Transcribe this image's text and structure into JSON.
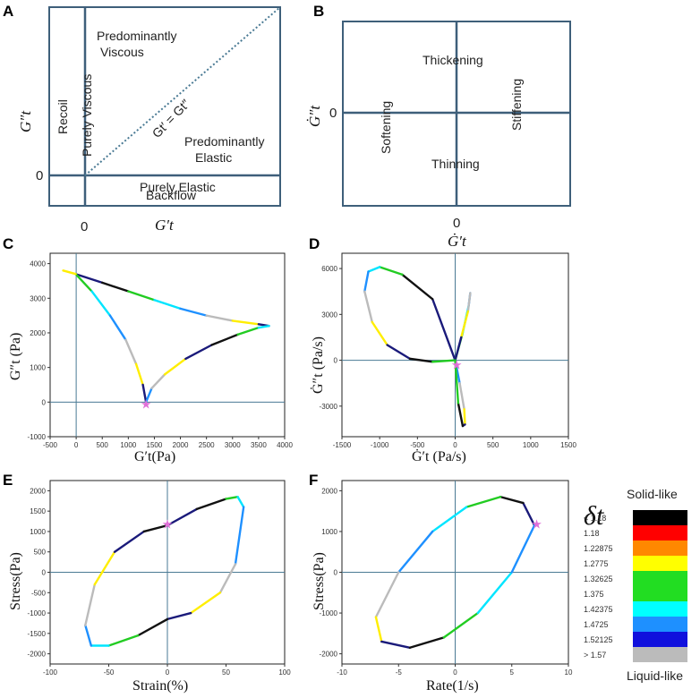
{
  "panels": {
    "A": {
      "label": "A",
      "xlabel": "G′t",
      "ylabel": "G″t",
      "x_zero": "0",
      "y_zero": "0",
      "regions": {
        "predominantly_viscous": [
          "Predominantly",
          "Viscous"
        ],
        "recoil": "Recoil",
        "purely_viscous": "Purely Viscous",
        "diagonal": "Gt′ = Gt″",
        "predominantly_elastic": [
          "Predominantly",
          "Elastic"
        ],
        "purely_elastic": "Purely Elastic",
        "backflow": "Backflow"
      }
    },
    "B": {
      "label": "B",
      "xlabel": "Ġ′t",
      "ylabel": "Ġ″t",
      "x_zero": "0",
      "y_zero": "0",
      "regions": {
        "thickening": "Thickening",
        "softening": "Softening",
        "stiffening": "Stiffening",
        "thinning": "Thinning"
      }
    },
    "C": {
      "label": "C",
      "xlabel": "G′t(Pa)",
      "ylabel": "G″t (Pa)"
    },
    "D": {
      "label": "D",
      "xlabel": "Ġ′t (Pa/s)",
      "ylabel": "Ġ″t (Pa/s)"
    },
    "E": {
      "label": "E",
      "xlabel": "Strain(%)",
      "ylabel": "Stress(Pa)"
    },
    "F": {
      "label": "F",
      "xlabel": "Rate(1/s)",
      "ylabel": "Stress(Pa)"
    }
  },
  "legend": {
    "symbol": "δt",
    "top_label": "Solid-like",
    "bottom_label": "Liquid-like",
    "entries": [
      {
        "label": "< 1.18",
        "color": "#000000"
      },
      {
        "label": "1.18",
        "color": "#ff0000"
      },
      {
        "label": "1.22875",
        "color": "#ff8800"
      },
      {
        "label": "1.2775",
        "color": "#ffff00"
      },
      {
        "label": "1.32625",
        "color": "#22dd22"
      },
      {
        "label": "1.375",
        "color": "#22dd22"
      },
      {
        "label": "1.42375",
        "color": "#00ffff"
      },
      {
        "label": "1.4725",
        "color": "#1e90ff"
      },
      {
        "label": "1.52125",
        "color": "#1010dd"
      },
      {
        "label": "> 1.57",
        "color": "#bbbbbb"
      }
    ]
  },
  "chart_data": [
    {
      "panel": "C",
      "type": "line",
      "xlabel": "G′t(Pa)",
      "ylabel": "G″t (Pa)",
      "xlim": [
        -500,
        4000
      ],
      "ylim": [
        -1000,
        4300
      ],
      "xticks": [
        -500,
        0,
        500,
        1000,
        1500,
        2000,
        2500,
        3000,
        3500,
        4000
      ],
      "yticks": [
        -1000,
        0,
        1000,
        2000,
        3000,
        4000
      ],
      "series": [
        {
          "name": "upper",
          "x": [
            -10,
            500,
            1000,
            1500,
            2000,
            2500,
            3000,
            3500,
            3700
          ],
          "y": [
            3700,
            3450,
            3200,
            2950,
            2700,
            2500,
            2350,
            2250,
            2200
          ]
        },
        {
          "name": "left",
          "x": [
            -10,
            300,
            650,
            950,
            1150,
            1280,
            1340
          ],
          "y": [
            3700,
            3200,
            2500,
            1800,
            1100,
            500,
            0
          ]
        },
        {
          "name": "right",
          "x": [
            1340,
            1450,
            1700,
            2100,
            2600,
            3100,
            3500,
            3700
          ],
          "y": [
            0,
            400,
            800,
            1250,
            1650,
            1950,
            2150,
            2200
          ]
        },
        {
          "name": "tail",
          "x": [
            -10,
            -250
          ],
          "y": [
            3700,
            3800
          ]
        }
      ],
      "marker": {
        "x": 1340,
        "y": -50
      }
    },
    {
      "panel": "D",
      "type": "line",
      "xlabel": "Ġ′t (Pa/s)",
      "ylabel": "Ġ″t (Pa/s)",
      "xlim": [
        -1500,
        1500
      ],
      "ylim": [
        -5000,
        7000
      ],
      "xticks": [
        -1500,
        -1000,
        -500,
        0,
        500,
        1000,
        1500
      ],
      "yticks": [
        -3000,
        0,
        3000,
        6000
      ],
      "series": [
        {
          "name": "large-loop",
          "x": [
            0,
            -300,
            -700,
            -1000,
            -1150,
            -1200,
            -1100,
            -900,
            -600,
            -300,
            0
          ],
          "y": [
            0,
            4000,
            5600,
            6100,
            5800,
            4500,
            2500,
            1000,
            100,
            -100,
            0
          ]
        },
        {
          "name": "right-petal",
          "x": [
            0,
            100,
            180,
            200,
            170,
            80,
            0
          ],
          "y": [
            0,
            1800,
            3600,
            4400,
            3200,
            1500,
            0
          ]
        },
        {
          "name": "lower-petal",
          "x": [
            0,
            60,
            120,
            130,
            100,
            40,
            0
          ],
          "y": [
            0,
            -1500,
            -3200,
            -4200,
            -4300,
            -2800,
            0
          ]
        }
      ],
      "marker": {
        "x": 20,
        "y": -300
      }
    },
    {
      "panel": "E",
      "type": "line",
      "xlabel": "Strain(%)",
      "ylabel": "Stress(Pa)",
      "xlim": [
        -100,
        100
      ],
      "ylim": [
        -2250,
        2250
      ],
      "xticks": [
        -100,
        -50,
        0,
        50,
        100
      ],
      "yticks": [
        -2000,
        -1500,
        -1000,
        -500,
        0,
        500,
        1000,
        1500,
        2000
      ],
      "series": [
        {
          "name": "loop",
          "x": [
            0,
            25,
            50,
            60,
            65,
            58,
            45,
            20,
            0,
            -25,
            -50,
            -65,
            -70,
            -62,
            -45,
            -20,
            0
          ],
          "y": [
            1150,
            1550,
            1800,
            1850,
            1600,
            200,
            -500,
            -1000,
            -1150,
            -1550,
            -1800,
            -1800,
            -1300,
            -300,
            500,
            1000,
            1150
          ]
        }
      ],
      "marker": {
        "x": 0,
        "y": 1180
      }
    },
    {
      "panel": "F",
      "type": "line",
      "xlabel": "Rate(1/s)",
      "ylabel": "Stress(Pa)",
      "xlim": [
        -10,
        10
      ],
      "ylim": [
        -2250,
        2250
      ],
      "xticks": [
        -10,
        -5,
        0,
        5,
        10
      ],
      "yticks": [
        -2000,
        -1000,
        0,
        1000,
        2000
      ],
      "series": [
        {
          "name": "loop",
          "x": [
            7,
            6,
            4,
            1,
            -2,
            -5,
            -7,
            -6.5,
            -4,
            -1,
            2,
            5,
            7
          ],
          "y": [
            1150,
            1700,
            1850,
            1600,
            1000,
            0,
            -1100,
            -1700,
            -1850,
            -1600,
            -1000,
            0,
            1150
          ]
        }
      ],
      "marker": {
        "x": 7.2,
        "y": 1180
      }
    }
  ]
}
